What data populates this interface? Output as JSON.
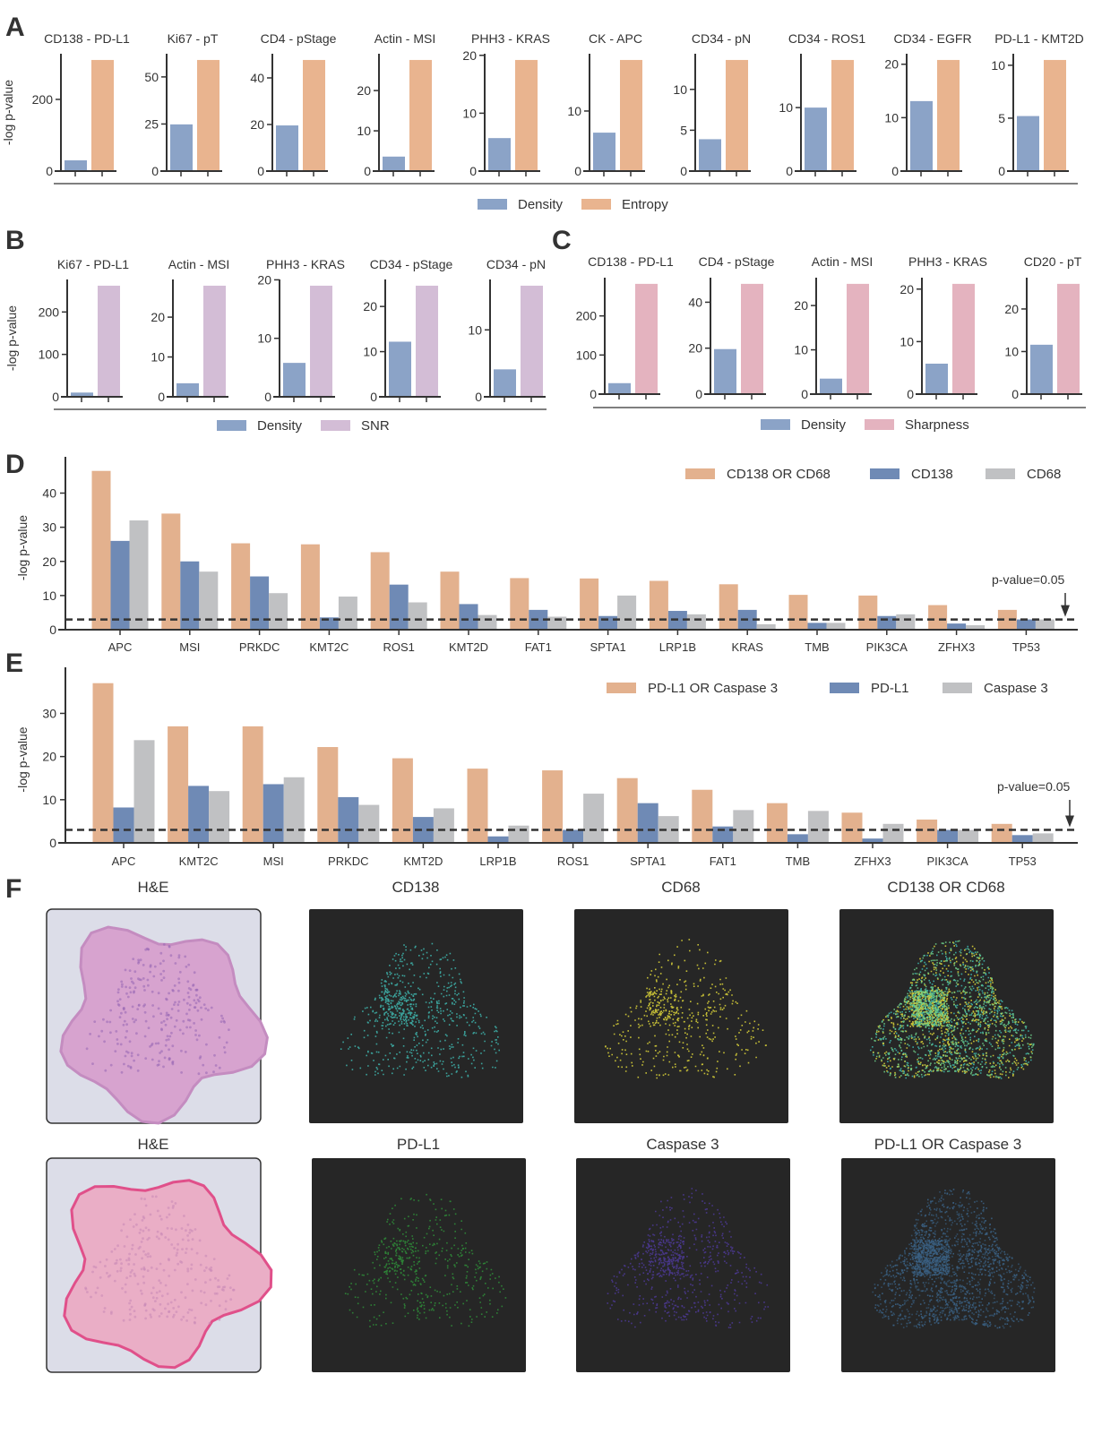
{
  "colors": {
    "density": "#8ba3c7",
    "entropy": "#e9b48f",
    "snr": "#d3bdd6",
    "sharpness": "#e4b3bf",
    "combined": "#e3b18e",
    "marker1": "#6f8ab5",
    "marker2": "#c0c1c3",
    "axis": "#333333"
  },
  "ylabel": "-log p-value",
  "chart_data": [
    {
      "panel": "A",
      "type": "bar",
      "ylabel": "-log p-value",
      "legend": [
        "Density",
        "Entropy"
      ],
      "legend_placement": "bottom",
      "subplots": [
        {
          "title": "CD138 - PD-L1",
          "values": [
            30,
            310
          ],
          "ticks": [
            0,
            200
          ]
        },
        {
          "title": "Ki67 - pT",
          "values": [
            24.8,
            59
          ],
          "ticks": [
            0,
            25,
            50
          ]
        },
        {
          "title": "CD4 - pStage",
          "values": [
            19.6,
            47.7
          ],
          "ticks": [
            0,
            20,
            40
          ]
        },
        {
          "title": "Actin - MSI",
          "values": [
            3.6,
            27.6
          ],
          "ticks": [
            0,
            10,
            20
          ]
        },
        {
          "title": "PHH3 - KRAS",
          "values": [
            5.7,
            19.2
          ],
          "ticks": [
            0,
            10,
            20
          ]
        },
        {
          "title": "CK - APC",
          "values": [
            6.4,
            18.5
          ],
          "ticks": [
            0,
            10
          ]
        },
        {
          "title": "CD34 - pN",
          "values": [
            3.9,
            13.6
          ],
          "ticks": [
            0,
            5,
            10
          ]
        },
        {
          "title": "CD34 - ROS1",
          "values": [
            10,
            17.5
          ],
          "ticks": [
            0,
            10
          ]
        },
        {
          "title": "CD34 - EGFR",
          "values": [
            13.1,
            20.8
          ],
          "ticks": [
            0,
            10,
            20
          ]
        },
        {
          "title": "PD-L1 - KMT2D",
          "values": [
            5.2,
            10.5
          ],
          "ticks": [
            0,
            5,
            10
          ]
        }
      ]
    },
    {
      "panel": "B",
      "type": "bar",
      "ylabel": "-log p-value",
      "legend": [
        "Density",
        "SNR"
      ],
      "legend_placement": "bottom",
      "subplots": [
        {
          "title": "Ki67 - PD-L1",
          "values": [
            10,
            262
          ],
          "ticks": [
            0,
            100,
            200
          ]
        },
        {
          "title": "Actin - MSI",
          "values": [
            3.4,
            27.9
          ],
          "ticks": [
            0,
            10,
            20
          ]
        },
        {
          "title": "PHH3 - KRAS",
          "values": [
            5.8,
            19
          ],
          "ticks": [
            0,
            10,
            20
          ]
        },
        {
          "title": "CD34 - pStage",
          "values": [
            12.2,
            24.6
          ],
          "ticks": [
            0,
            10,
            20
          ]
        },
        {
          "title": "CD34 - pN",
          "values": [
            4.1,
            16.6
          ],
          "ticks": [
            0,
            10
          ]
        }
      ]
    },
    {
      "panel": "C",
      "type": "bar",
      "legend": [
        "Density",
        "Sharpness"
      ],
      "legend_placement": "bottom",
      "subplots": [
        {
          "title": "CD138 - PD-L1",
          "values": [
            28,
            282
          ],
          "ticks": [
            0,
            100,
            200
          ]
        },
        {
          "title": "CD4 - pStage",
          "values": [
            19.6,
            48
          ],
          "ticks": [
            0,
            20,
            40
          ]
        },
        {
          "title": "Actin - MSI",
          "values": [
            3.5,
            24.9
          ],
          "ticks": [
            0,
            10,
            20
          ]
        },
        {
          "title": "PHH3 - KRAS",
          "values": [
            5.8,
            21
          ],
          "ticks": [
            0,
            10,
            20
          ]
        },
        {
          "title": "CD20 - pT",
          "values": [
            11.6,
            25.9
          ],
          "ticks": [
            0,
            10,
            20
          ]
        }
      ]
    },
    {
      "panel": "D",
      "type": "bar",
      "ylabel": "-log p-value",
      "legend_placement": "top-right",
      "categories": [
        "APC",
        "MSI",
        "PRKDC",
        "KMT2C",
        "ROS1",
        "KMT2D",
        "FAT1",
        "SPTA1",
        "LRP1B",
        "KRAS",
        "TMB",
        "PIK3CA",
        "ZFHX3",
        "TP53"
      ],
      "series": [
        {
          "name": "CD138 OR CD68",
          "values": [
            46.5,
            34,
            25.3,
            25,
            22.7,
            17,
            15.1,
            15,
            14.3,
            13.3,
            10.2,
            10,
            7.2,
            5.8
          ]
        },
        {
          "name": "CD138",
          "values": [
            26,
            20,
            15.6,
            3.6,
            13.2,
            7.5,
            5.8,
            4,
            5.5,
            5.8,
            2,
            4,
            1.8,
            3
          ]
        },
        {
          "name": "CD68",
          "values": [
            32,
            17,
            10.7,
            9.7,
            8,
            4.3,
            3.8,
            10,
            4.5,
            1.6,
            2,
            4.5,
            1.3,
            3
          ]
        }
      ],
      "ticks": [
        0,
        10,
        20,
        30,
        40
      ],
      "ylim": [
        0,
        48
      ],
      "threshold": 3,
      "threshold_label": "p-value=0.05"
    },
    {
      "panel": "E",
      "type": "bar",
      "ylabel": "-log p-value",
      "legend_placement": "top-right",
      "categories": [
        "APC",
        "KMT2C",
        "MSI",
        "PRKDC",
        "KMT2D",
        "LRP1B",
        "ROS1",
        "SPTA1",
        "FAT1",
        "TMB",
        "ZFHX3",
        "PIK3CA",
        "TP53"
      ],
      "series": [
        {
          "name": "PD-L1 OR Caspase 3",
          "values": [
            37,
            27,
            27,
            22.2,
            19.6,
            17.2,
            16.8,
            15,
            12.3,
            9.2,
            7,
            5.4,
            4.4
          ]
        },
        {
          "name": "PD-L1",
          "values": [
            8.2,
            13.2,
            13.6,
            10.6,
            6,
            1.5,
            3,
            9.2,
            3.8,
            2,
            1,
            3,
            1.8
          ]
        },
        {
          "name": "Caspase 3",
          "values": [
            23.8,
            12,
            15.2,
            8.8,
            8,
            4,
            11.4,
            6.2,
            7.6,
            7.4,
            4.4,
            3,
            2.2
          ]
        }
      ],
      "ticks": [
        0,
        10,
        20,
        30
      ],
      "ylim": [
        0,
        38.6
      ],
      "threshold": 3,
      "threshold_label": "p-value=0.05"
    }
  ],
  "panel_f": {
    "letter": "F",
    "rows": [
      {
        "titles": [
          "H&E",
          "CD138",
          "CD68",
          "CD138 OR CD68"
        ]
      },
      {
        "titles": [
          "H&E",
          "PD-L1",
          "Caspase 3",
          "PD-L1 OR Caspase 3"
        ]
      }
    ]
  }
}
